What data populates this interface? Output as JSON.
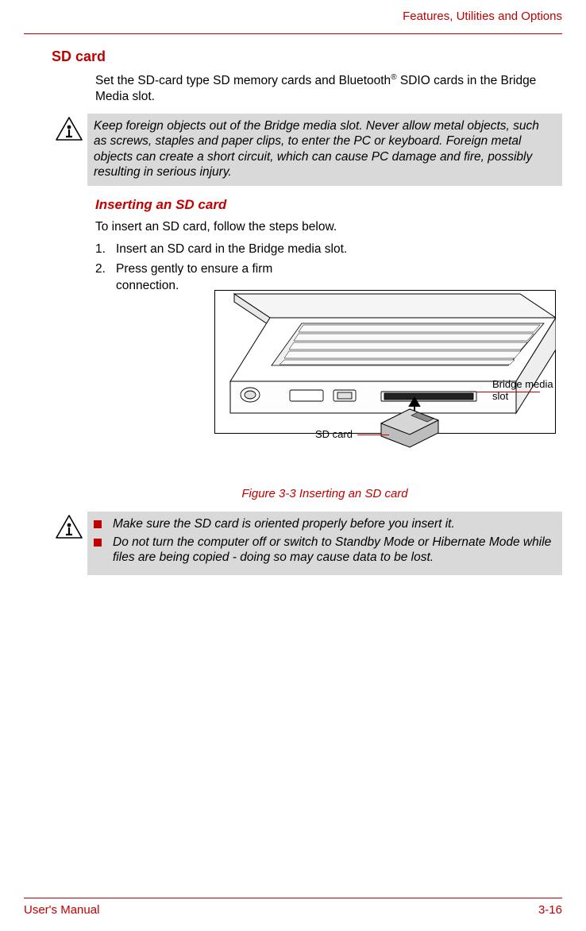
{
  "header": {
    "chapter_title": "Features, Utilities and Options"
  },
  "section": {
    "title": "SD card",
    "intro_html": "Set the SD-card type SD memory cards and Bluetooth<sup>®</sup> SDIO cards in the Bridge Media slot."
  },
  "caution1": {
    "text": "Keep foreign objects out of the Bridge media slot. Never allow metal objects, such as screws, staples and paper clips, to enter the PC or keyboard. Foreign metal objects can create a short circuit, which can cause PC damage and fire, possibly resulting in serious injury."
  },
  "subsection": {
    "heading": "Inserting an SD card",
    "lead": "To insert an SD card, follow the steps below.",
    "steps": [
      "Insert an SD card in the Bridge media slot.",
      "Press gently to ensure a firm connection."
    ]
  },
  "figure": {
    "label_sd": "SD card",
    "label_slot": "Bridge media slot",
    "caption": "Figure 3-3 Inserting an SD card"
  },
  "caution2": {
    "bullets": [
      "Make sure the SD card is oriented properly before you insert it.",
      "Do not turn the computer off or switch to Standby Mode or Hibernate Mode while files are being copied - doing so may cause data to be lost."
    ]
  },
  "footer": {
    "left": "User's Manual",
    "right": "3-16"
  },
  "colors": {
    "accent": "#c00000",
    "caution_bg": "#d9d9d9"
  }
}
